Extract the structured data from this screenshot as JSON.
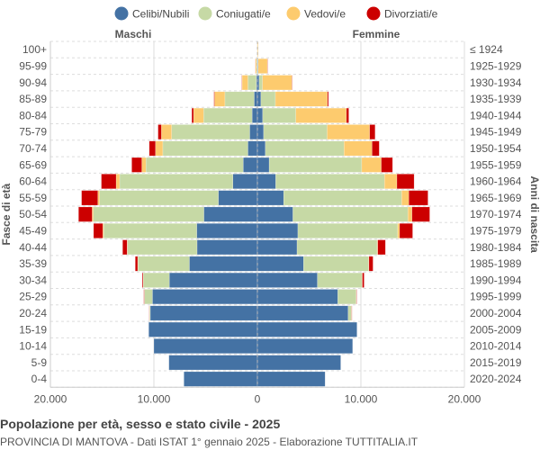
{
  "chart_data": {
    "type": "bar",
    "orientation": "horizontal-pyramid",
    "title": "Popolazione per età, sesso e stato civile - 2025",
    "subtitle": "PROVINCIA DI MANTOVA - Dati ISTAT 1° gennaio 2025 - Elaborazione TUTTITALIA.IT",
    "left_label": "Maschi",
    "right_label": "Femmine",
    "ylabel_left": "Fasce di età",
    "ylabel_right": "Anni di nascita",
    "xlim": [
      -20000,
      20000
    ],
    "x_ticks": [
      "20.000",
      "10.000",
      "0",
      "10.000",
      "20.000"
    ],
    "legend_position": "top",
    "grid": true,
    "categories": [
      "100+",
      "95-99",
      "90-94",
      "85-89",
      "80-84",
      "75-79",
      "70-74",
      "65-69",
      "60-64",
      "55-59",
      "50-54",
      "45-49",
      "40-44",
      "35-39",
      "30-34",
      "25-29",
      "20-24",
      "15-19",
      "10-14",
      "5-9",
      "0-4"
    ],
    "birth_years": [
      "≤ 1924",
      "1925-1929",
      "1930-1934",
      "1935-1939",
      "1940-1944",
      "1945-1949",
      "1950-1954",
      "1955-1959",
      "1960-1964",
      "1965-1969",
      "1970-1974",
      "1975-1979",
      "1980-1984",
      "1985-1989",
      "1990-1994",
      "1995-1999",
      "2000-2004",
      "2005-2009",
      "2010-2014",
      "2015-2019",
      "2020-2024"
    ],
    "series": [
      {
        "name": "Celibi/Nubili",
        "color": "#4472a4",
        "male": [
          20,
          30,
          100,
          310,
          510,
          740,
          920,
          1370,
          2370,
          3770,
          5170,
          5860,
          5830,
          6570,
          8510,
          10140,
          10350,
          10500,
          10000,
          8550,
          7100
        ],
        "female": [
          20,
          50,
          170,
          340,
          510,
          600,
          770,
          1140,
          1770,
          2540,
          3430,
          3910,
          3830,
          4460,
          5800,
          7770,
          8770,
          9620,
          9200,
          8050,
          6540
        ]
      },
      {
        "name": "Coniugati/e",
        "color": "#c6d9a5",
        "male": [
          5,
          60,
          820,
          2830,
          4690,
          7550,
          8220,
          9400,
          10940,
          11480,
          10680,
          8990,
          6710,
          4970,
          2520,
          770,
          80,
          0,
          0,
          0,
          0
        ],
        "female": [
          5,
          30,
          320,
          1400,
          3200,
          6140,
          7600,
          8940,
          10510,
          11400,
          11110,
          9630,
          7740,
          6280,
          4310,
          1770,
          310,
          0,
          0,
          0,
          0
        ]
      },
      {
        "name": "Vedovi/e",
        "color": "#fdcb6e",
        "male": [
          10,
          110,
          560,
          1000,
          970,
          990,
          710,
          400,
          340,
          170,
          120,
          90,
          50,
          30,
          20,
          20,
          10,
          0,
          0,
          0,
          0
        ],
        "female": [
          60,
          890,
          2850,
          5030,
          4890,
          4110,
          2710,
          1890,
          1200,
          690,
          400,
          200,
          60,
          40,
          30,
          20,
          30,
          0,
          0,
          0,
          0
        ]
      },
      {
        "name": "Divorziati/e",
        "color": "#cc0000",
        "male": [
          0,
          10,
          30,
          60,
          170,
          320,
          600,
          970,
          1430,
          1570,
          1310,
          890,
          430,
          230,
          80,
          50,
          20,
          0,
          0,
          0,
          0
        ],
        "female": [
          0,
          30,
          30,
          100,
          230,
          520,
          690,
          1090,
          1660,
          1850,
          1710,
          1260,
          740,
          390,
          170,
          40,
          30,
          0,
          0,
          0,
          0
        ]
      }
    ]
  }
}
